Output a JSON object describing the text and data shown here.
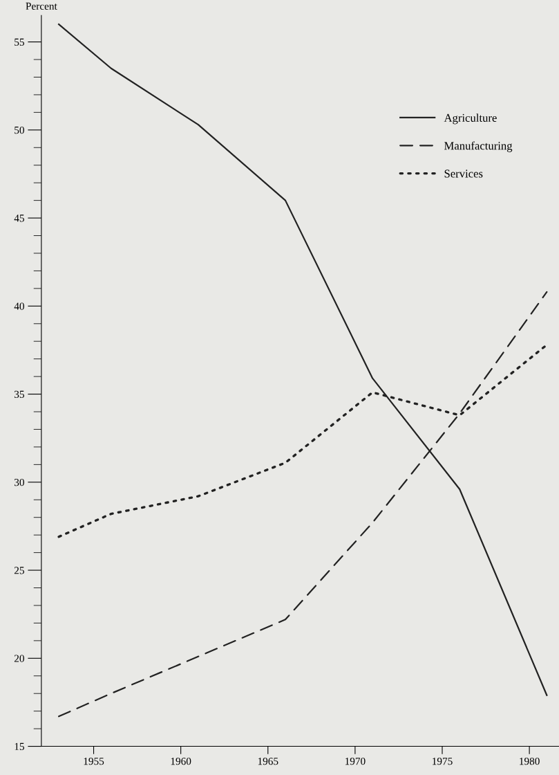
{
  "chart_data": {
    "type": "line",
    "ylabel": "Percent",
    "x": [
      1953,
      1956,
      1961,
      1966,
      1971,
      1976,
      1981
    ],
    "series": [
      {
        "name": "Agriculture",
        "color": "#222222",
        "line_style": "solid",
        "values": [
          56.0,
          53.5,
          50.3,
          46.0,
          35.9,
          29.6,
          17.9
        ]
      },
      {
        "name": "Manufacturing",
        "color": "#222222",
        "line_style": "dashed",
        "values": [
          16.7,
          18.0,
          20.1,
          22.2,
          27.7,
          33.9,
          40.8
        ]
      },
      {
        "name": "Services",
        "color": "#222222",
        "line_style": "dotted",
        "values": [
          26.9,
          28.2,
          29.2,
          31.1,
          35.1,
          33.8,
          37.8
        ]
      }
    ],
    "xlim": [
      1952,
      1981.7
    ],
    "xticks": [
      1955,
      1960,
      1965,
      1970,
      1975,
      1980
    ],
    "ylim": [
      15,
      56.5
    ],
    "yticks": [
      15,
      20,
      25,
      30,
      35,
      40,
      45,
      50,
      55
    ],
    "grid": false,
    "legend": "top right",
    "marker": "none"
  }
}
